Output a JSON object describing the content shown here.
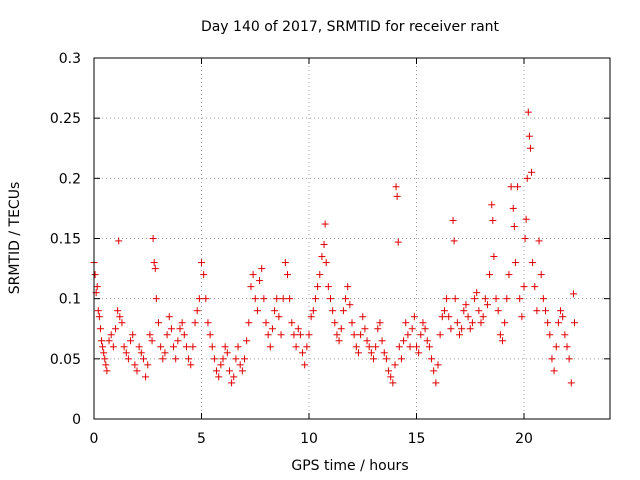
{
  "chart_data": {
    "type": "scatter",
    "title": "Day 140 of 2017, SRMTID for receiver rant",
    "xlabel": "GPS time / hours",
    "ylabel": "SRMTID / TECUs",
    "xlim": [
      0,
      24
    ],
    "ylim": [
      0,
      0.3
    ],
    "xticks": [
      0,
      5,
      10,
      15,
      20
    ],
    "xtick_labels": [
      "0",
      "5",
      "10",
      "15",
      "20"
    ],
    "yticks": [
      0,
      0.05,
      0.1,
      0.15,
      0.2,
      0.25,
      0.3
    ],
    "ytick_labels": [
      "0",
      "0.05",
      "0.1",
      "0.15",
      "0.2",
      "0.25",
      "0.3"
    ],
    "grid": true,
    "marker": "+",
    "color": "#e00000",
    "series": [
      {
        "name": "SRMTID",
        "points": [
          [
            0.0,
            0.13
          ],
          [
            0.05,
            0.12
          ],
          [
            0.1,
            0.105
          ],
          [
            0.15,
            0.11
          ],
          [
            0.2,
            0.09
          ],
          [
            0.25,
            0.085
          ],
          [
            0.3,
            0.075
          ],
          [
            0.35,
            0.065
          ],
          [
            0.4,
            0.06
          ],
          [
            0.45,
            0.055
          ],
          [
            0.5,
            0.05
          ],
          [
            0.55,
            0.045
          ],
          [
            0.6,
            0.04
          ],
          [
            0.7,
            0.065
          ],
          [
            0.8,
            0.07
          ],
          [
            0.9,
            0.06
          ],
          [
            1.0,
            0.075
          ],
          [
            1.1,
            0.09
          ],
          [
            1.15,
            0.148
          ],
          [
            1.2,
            0.085
          ],
          [
            1.3,
            0.08
          ],
          [
            1.4,
            0.06
          ],
          [
            1.5,
            0.055
          ],
          [
            1.6,
            0.05
          ],
          [
            1.7,
            0.065
          ],
          [
            1.8,
            0.07
          ],
          [
            1.9,
            0.045
          ],
          [
            2.0,
            0.04
          ],
          [
            2.1,
            0.06
          ],
          [
            2.2,
            0.055
          ],
          [
            2.3,
            0.05
          ],
          [
            2.4,
            0.035
          ],
          [
            2.5,
            0.045
          ],
          [
            2.6,
            0.07
          ],
          [
            2.7,
            0.065
          ],
          [
            2.75,
            0.15
          ],
          [
            2.8,
            0.13
          ],
          [
            2.85,
            0.125
          ],
          [
            2.9,
            0.1
          ],
          [
            3.0,
            0.08
          ],
          [
            3.1,
            0.06
          ],
          [
            3.2,
            0.05
          ],
          [
            3.3,
            0.055
          ],
          [
            3.4,
            0.07
          ],
          [
            3.5,
            0.085
          ],
          [
            3.6,
            0.075
          ],
          [
            3.7,
            0.06
          ],
          [
            3.8,
            0.05
          ],
          [
            3.9,
            0.065
          ],
          [
            4.0,
            0.075
          ],
          [
            4.1,
            0.08
          ],
          [
            4.2,
            0.07
          ],
          [
            4.3,
            0.06
          ],
          [
            4.4,
            0.05
          ],
          [
            4.5,
            0.045
          ],
          [
            4.6,
            0.06
          ],
          [
            4.7,
            0.08
          ],
          [
            4.8,
            0.09
          ],
          [
            4.9,
            0.1
          ],
          [
            5.0,
            0.13
          ],
          [
            5.1,
            0.12
          ],
          [
            5.2,
            0.1
          ],
          [
            5.3,
            0.08
          ],
          [
            5.4,
            0.07
          ],
          [
            5.5,
            0.06
          ],
          [
            5.6,
            0.05
          ],
          [
            5.7,
            0.04
          ],
          [
            5.8,
            0.035
          ],
          [
            5.9,
            0.045
          ],
          [
            6.0,
            0.05
          ],
          [
            6.1,
            0.06
          ],
          [
            6.2,
            0.055
          ],
          [
            6.3,
            0.04
          ],
          [
            6.4,
            0.03
          ],
          [
            6.5,
            0.035
          ],
          [
            6.6,
            0.05
          ],
          [
            6.7,
            0.06
          ],
          [
            6.8,
            0.045
          ],
          [
            6.9,
            0.04
          ],
          [
            7.0,
            0.05
          ],
          [
            7.1,
            0.065
          ],
          [
            7.2,
            0.08
          ],
          [
            7.3,
            0.11
          ],
          [
            7.4,
            0.12
          ],
          [
            7.5,
            0.1
          ],
          [
            7.6,
            0.09
          ],
          [
            7.7,
            0.115
          ],
          [
            7.8,
            0.125
          ],
          [
            7.9,
            0.1
          ],
          [
            8.0,
            0.08
          ],
          [
            8.1,
            0.07
          ],
          [
            8.2,
            0.06
          ],
          [
            8.3,
            0.075
          ],
          [
            8.4,
            0.09
          ],
          [
            8.5,
            0.1
          ],
          [
            8.6,
            0.085
          ],
          [
            8.7,
            0.07
          ],
          [
            8.8,
            0.1
          ],
          [
            8.9,
            0.13
          ],
          [
            9.0,
            0.12
          ],
          [
            9.1,
            0.1
          ],
          [
            9.2,
            0.08
          ],
          [
            9.3,
            0.07
          ],
          [
            9.4,
            0.06
          ],
          [
            9.5,
            0.075
          ],
          [
            9.6,
            0.07
          ],
          [
            9.7,
            0.055
          ],
          [
            9.8,
            0.045
          ],
          [
            9.9,
            0.06
          ],
          [
            10.0,
            0.07
          ],
          [
            10.1,
            0.085
          ],
          [
            10.2,
            0.09
          ],
          [
            10.3,
            0.1
          ],
          [
            10.4,
            0.11
          ],
          [
            10.5,
            0.12
          ],
          [
            10.6,
            0.135
          ],
          [
            10.7,
            0.145
          ],
          [
            10.75,
            0.162
          ],
          [
            10.8,
            0.13
          ],
          [
            10.9,
            0.11
          ],
          [
            11.0,
            0.1
          ],
          [
            11.1,
            0.09
          ],
          [
            11.2,
            0.08
          ],
          [
            11.3,
            0.07
          ],
          [
            11.4,
            0.065
          ],
          [
            11.5,
            0.075
          ],
          [
            11.6,
            0.09
          ],
          [
            11.7,
            0.1
          ],
          [
            11.8,
            0.11
          ],
          [
            11.9,
            0.095
          ],
          [
            12.0,
            0.08
          ],
          [
            12.1,
            0.07
          ],
          [
            12.2,
            0.06
          ],
          [
            12.3,
            0.055
          ],
          [
            12.4,
            0.07
          ],
          [
            12.5,
            0.085
          ],
          [
            12.6,
            0.075
          ],
          [
            12.7,
            0.065
          ],
          [
            12.8,
            0.06
          ],
          [
            12.9,
            0.055
          ],
          [
            13.0,
            0.05
          ],
          [
            13.1,
            0.06
          ],
          [
            13.2,
            0.075
          ],
          [
            13.3,
            0.08
          ],
          [
            13.4,
            0.065
          ],
          [
            13.5,
            0.055
          ],
          [
            13.6,
            0.05
          ],
          [
            13.7,
            0.04
          ],
          [
            13.8,
            0.035
          ],
          [
            13.9,
            0.03
          ],
          [
            14.0,
            0.045
          ],
          [
            14.05,
            0.193
          ],
          [
            14.1,
            0.185
          ],
          [
            14.15,
            0.147
          ],
          [
            14.2,
            0.06
          ],
          [
            14.3,
            0.05
          ],
          [
            14.4,
            0.065
          ],
          [
            14.5,
            0.08
          ],
          [
            14.6,
            0.07
          ],
          [
            14.7,
            0.06
          ],
          [
            14.8,
            0.075
          ],
          [
            14.9,
            0.085
          ],
          [
            15.0,
            0.06
          ],
          [
            15.1,
            0.055
          ],
          [
            15.2,
            0.07
          ],
          [
            15.3,
            0.08
          ],
          [
            15.4,
            0.075
          ],
          [
            15.5,
            0.065
          ],
          [
            15.6,
            0.06
          ],
          [
            15.7,
            0.05
          ],
          [
            15.8,
            0.04
          ],
          [
            15.9,
            0.03
          ],
          [
            16.0,
            0.045
          ],
          [
            16.1,
            0.07
          ],
          [
            16.2,
            0.085
          ],
          [
            16.3,
            0.09
          ],
          [
            16.4,
            0.1
          ],
          [
            16.5,
            0.085
          ],
          [
            16.6,
            0.075
          ],
          [
            16.7,
            0.165
          ],
          [
            16.75,
            0.148
          ],
          [
            16.8,
            0.1
          ],
          [
            16.9,
            0.08
          ],
          [
            17.0,
            0.07
          ],
          [
            17.1,
            0.075
          ],
          [
            17.2,
            0.09
          ],
          [
            17.3,
            0.095
          ],
          [
            17.4,
            0.085
          ],
          [
            17.5,
            0.075
          ],
          [
            17.6,
            0.08
          ],
          [
            17.7,
            0.1
          ],
          [
            17.8,
            0.105
          ],
          [
            17.9,
            0.09
          ],
          [
            18.0,
            0.08
          ],
          [
            18.1,
            0.085
          ],
          [
            18.2,
            0.1
          ],
          [
            18.3,
            0.095
          ],
          [
            18.4,
            0.12
          ],
          [
            18.5,
            0.178
          ],
          [
            18.55,
            0.165
          ],
          [
            18.6,
            0.135
          ],
          [
            18.7,
            0.1
          ],
          [
            18.8,
            0.09
          ],
          [
            18.9,
            0.07
          ],
          [
            19.0,
            0.065
          ],
          [
            19.1,
            0.08
          ],
          [
            19.2,
            0.1
          ],
          [
            19.3,
            0.12
          ],
          [
            19.4,
            0.193
          ],
          [
            19.5,
            0.175
          ],
          [
            19.55,
            0.16
          ],
          [
            19.6,
            0.13
          ],
          [
            19.7,
            0.193
          ],
          [
            19.8,
            0.1
          ],
          [
            19.9,
            0.085
          ],
          [
            20.0,
            0.11
          ],
          [
            20.05,
            0.15
          ],
          [
            20.1,
            0.166
          ],
          [
            20.15,
            0.2
          ],
          [
            20.2,
            0.255
          ],
          [
            20.25,
            0.235
          ],
          [
            20.3,
            0.225
          ],
          [
            20.35,
            0.205
          ],
          [
            20.4,
            0.13
          ],
          [
            20.5,
            0.11
          ],
          [
            20.6,
            0.09
          ],
          [
            20.7,
            0.148
          ],
          [
            20.8,
            0.12
          ],
          [
            20.9,
            0.1
          ],
          [
            21.0,
            0.09
          ],
          [
            21.1,
            0.08
          ],
          [
            21.2,
            0.07
          ],
          [
            21.3,
            0.05
          ],
          [
            21.4,
            0.04
          ],
          [
            21.5,
            0.06
          ],
          [
            21.6,
            0.08
          ],
          [
            21.7,
            0.09
          ],
          [
            21.8,
            0.085
          ],
          [
            21.9,
            0.07
          ],
          [
            22.0,
            0.06
          ],
          [
            22.1,
            0.05
          ],
          [
            22.2,
            0.03
          ],
          [
            22.3,
            0.104
          ],
          [
            22.35,
            0.08
          ]
        ]
      }
    ]
  }
}
